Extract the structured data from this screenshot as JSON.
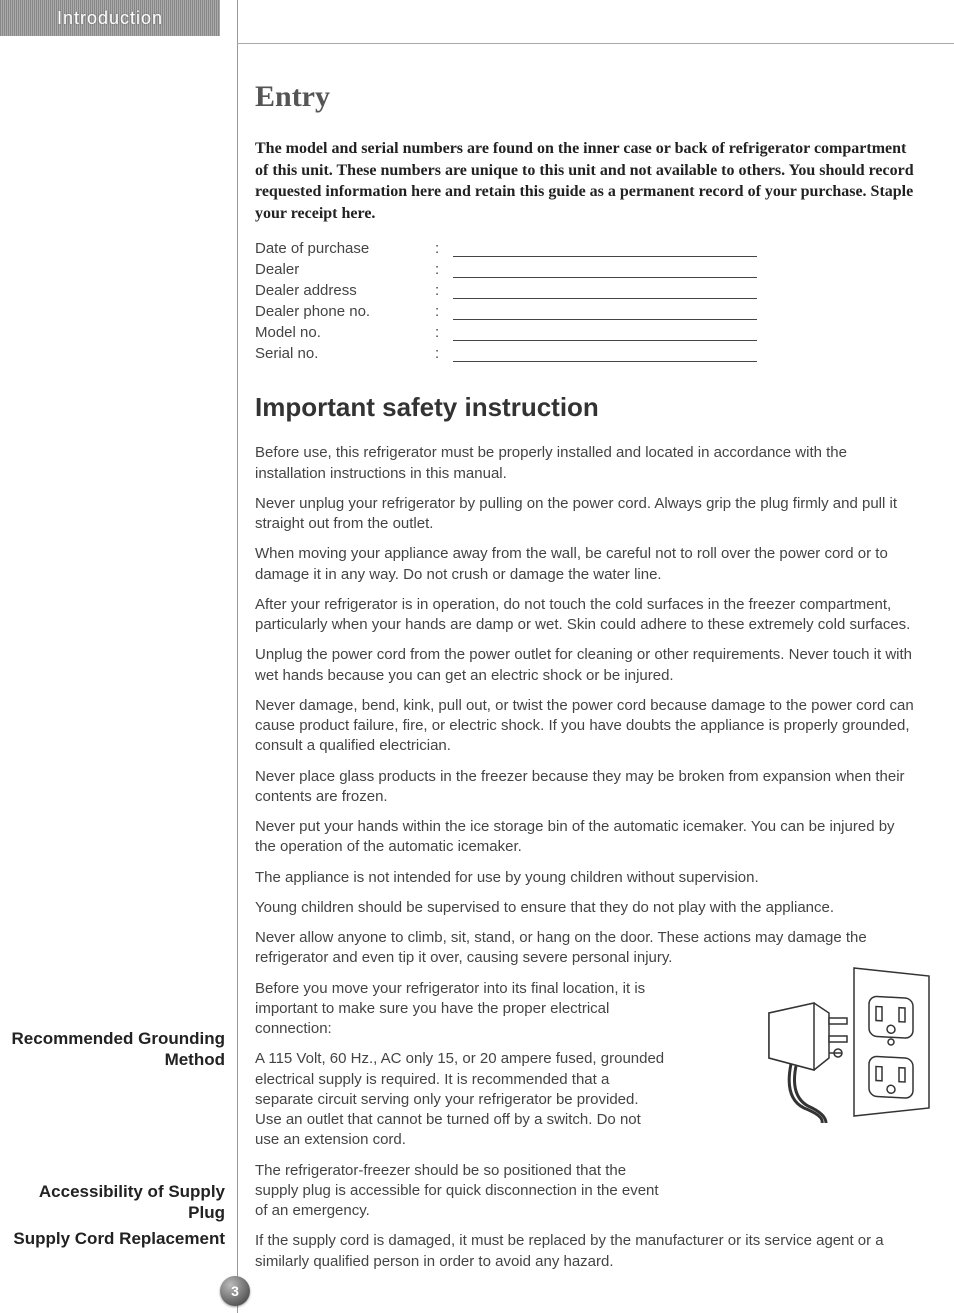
{
  "colors": {
    "header_bg_a": "#888888",
    "header_bg_b": "#aaaaaa",
    "rule": "#999999",
    "text": "#333333",
    "heading": "#555555"
  },
  "tab": {
    "label": "Introduction"
  },
  "sidebar": {
    "grounding": "Recommended Grounding Method",
    "accessibility": "Accessibility of Supply Plug",
    "replacement": "Supply Cord Replacement"
  },
  "page_number": "3",
  "entry": {
    "heading": "Entry",
    "intro": "The model and serial numbers are found on the inner case or back of refrigerator compartment of this unit. These numbers are unique to this unit and not available to others. You should record requested information here and retain this guide as a permanent record of your purchase. Staple your receipt here.",
    "fields": [
      "Date of purchase",
      "Dealer",
      "Dealer address",
      "Dealer phone no.",
      "Model no.",
      "Serial no."
    ],
    "colon": ":"
  },
  "safety": {
    "heading": "Important safety instruction",
    "paras": [
      "Before use, this refrigerator must be properly installed and located in accordance with the installation instructions in this manual.",
      "Never unplug your refrigerator by pulling on the power cord. Always grip the plug firmly and pull it straight out from the outlet.",
      "When moving your appliance away from the wall, be careful not to roll over the power cord or to damage it in any way. Do not crush or damage the water line.",
      "After your refrigerator is in operation, do not touch the cold surfaces in the freezer compartment, particularly when your hands are damp or wet. Skin could adhere to these extremely cold surfaces.",
      "Unplug the power cord from the power outlet for cleaning or other requirements. Never touch it with wet hands because you can get an electric shock or be injured.",
      "Never damage, bend, kink, pull out, or twist the power cord because damage to the power cord can cause product failure, fire, or electric shock. If you have doubts the appliance is properly grounded, consult a qualified electrician.",
      "Never place glass products in the freezer because they may be broken from expansion when their contents are frozen.",
      "Never put your hands within the ice storage bin of the automatic icemaker. You can be injured by the operation of the automatic icemaker.",
      "The appliance is not intended for use by young children without supervision.",
      "Young children should be supervised to ensure that they do not play with the appliance.",
      "Never allow anyone to climb, sit, stand, or hang on the door. These actions may damage the refrigerator and even tip it over, causing severe personal injury."
    ],
    "grounding_paras": [
      "Before you move your refrigerator into its final location, it is important to make sure you have the proper electrical connection:",
      "A 115 Volt, 60 Hz., AC only 15, or 20 ampere fused, grounded electrical supply is required. It is recommended that a separate circuit serving only your refrigerator be provided. Use an outlet that cannot be turned off by a switch. Do not use an extension cord."
    ],
    "accessibility_para": "The refrigerator-freezer should be so positioned that the supply plug is accessible for quick disconnection in the event of an emergency.",
    "replacement_para": "If the supply cord is damaged, it must be replaced by the manufacturer or its service agent or a similarly qualified person in order to avoid any hazard."
  }
}
